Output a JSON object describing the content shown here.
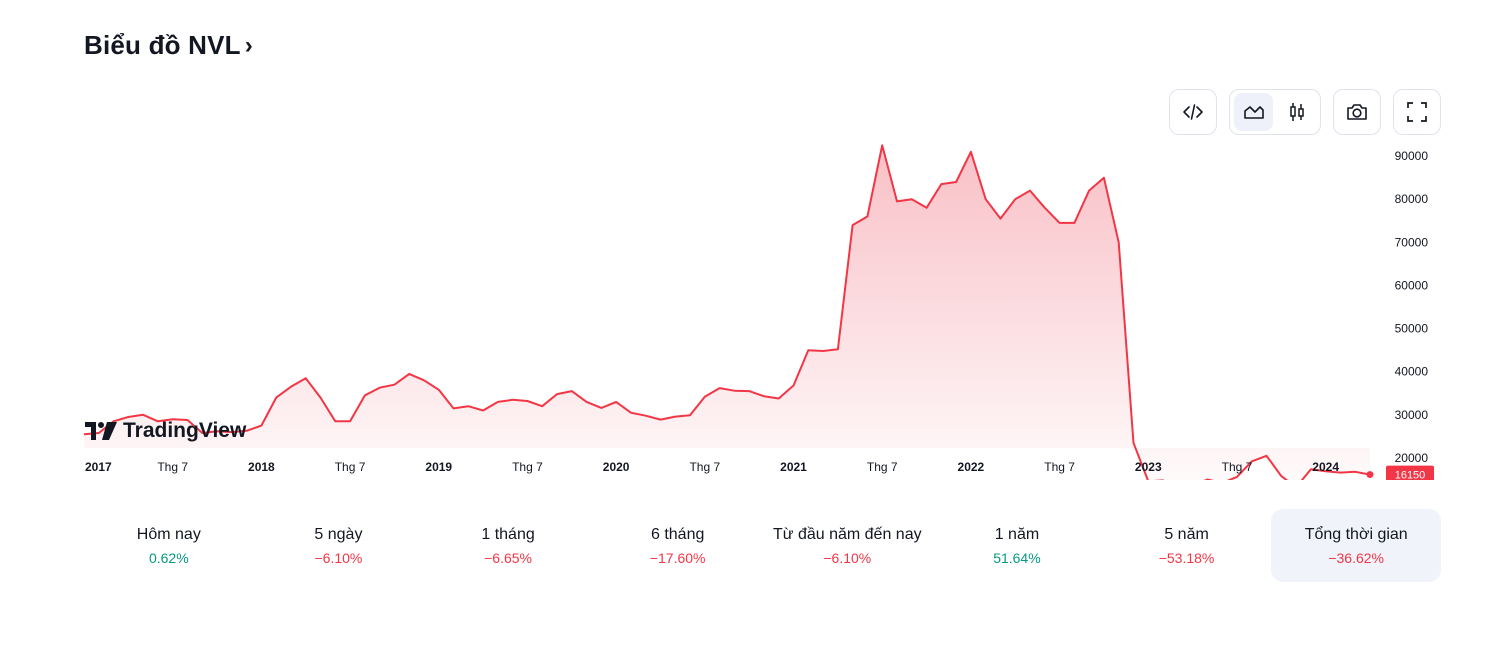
{
  "header": {
    "title": "Biểu đồ NVL",
    "chevron": "›"
  },
  "toolbar": {
    "embed_icon": "code-icon",
    "area_icon": "area-chart-icon",
    "candle_icon": "candlestick-icon",
    "camera_icon": "camera-icon",
    "fullscreen_icon": "fullscreen-icon",
    "active_chart_type": "area"
  },
  "branding": {
    "logo_text": "TradingView"
  },
  "colors": {
    "line": "#f23645",
    "fill_top": "#f7b5bc",
    "positive": "#089981",
    "negative": "#f23645"
  },
  "chart_data": {
    "type": "area",
    "title": "",
    "xlabel": "",
    "ylabel": "",
    "x_axis_labels": [
      "2017",
      "Thg 7",
      "2018",
      "Thg 7",
      "2019",
      "Thg 7",
      "2020",
      "Thg 7",
      "2021",
      "Thg 7",
      "2022",
      "Thg 7",
      "2023",
      "Thg 7",
      "2024"
    ],
    "y_ticks": [
      20000,
      30000,
      40000,
      50000,
      60000,
      70000,
      80000,
      90000
    ],
    "ylim": [
      13500,
      93500
    ],
    "x_start": "2017-01",
    "x_end": "2024-04",
    "grid": false,
    "legend": "none",
    "last_value": 16150,
    "series": [
      {
        "x": [
          "2017-01",
          "2017-02",
          "2017-03",
          "2017-04",
          "2017-05",
          "2017-06",
          "2017-07",
          "2017-08",
          "2017-09",
          "2017-10",
          "2017-11",
          "2017-12",
          "2018-01",
          "2018-02",
          "2018-03",
          "2018-04",
          "2018-05",
          "2018-06",
          "2018-07",
          "2018-08",
          "2018-09",
          "2018-10",
          "2018-11",
          "2018-12",
          "2019-01",
          "2019-02",
          "2019-03",
          "2019-04",
          "2019-05",
          "2019-06",
          "2019-07",
          "2019-08",
          "2019-09",
          "2019-10",
          "2019-11",
          "2019-12",
          "2020-01",
          "2020-02",
          "2020-03",
          "2020-04",
          "2020-05",
          "2020-06",
          "2020-07",
          "2020-08",
          "2020-09",
          "2020-10",
          "2020-11",
          "2020-12",
          "2021-01",
          "2021-02",
          "2021-03",
          "2021-04",
          "2021-05",
          "2021-06",
          "2021-07",
          "2021-08",
          "2021-09",
          "2021-10",
          "2021-11",
          "2021-12",
          "2022-01",
          "2022-02",
          "2022-03",
          "2022-04",
          "2022-05",
          "2022-06",
          "2022-07",
          "2022-08",
          "2022-09",
          "2022-10",
          "2022-11",
          "2022-12",
          "2023-01",
          "2023-02",
          "2023-03",
          "2023-04",
          "2023-05",
          "2023-06",
          "2023-07",
          "2023-08",
          "2023-09",
          "2023-10",
          "2023-11",
          "2023-12",
          "2024-01",
          "2024-02",
          "2024-03",
          "2024-04"
        ],
        "values": [
          25500,
          25800,
          28500,
          29500,
          30000,
          28500,
          29000,
          28800,
          25800,
          26200,
          26000,
          26300,
          27500,
          34000,
          36500,
          38500,
          34000,
          28500,
          28500,
          34500,
          36300,
          37000,
          39500,
          38000,
          35800,
          31500,
          32000,
          31000,
          33000,
          33500,
          33200,
          32000,
          34800,
          35500,
          33000,
          31600,
          33000,
          30500,
          29800,
          28900,
          29600,
          29900,
          34200,
          36200,
          35600,
          35500,
          34300,
          33800,
          36800,
          45000,
          44800,
          45200,
          74000,
          76000,
          92500,
          79500,
          80000,
          78000,
          83500,
          84000,
          91000,
          80000,
          75500,
          80000,
          82000,
          78000,
          74500,
          74500,
          82000,
          85000,
          70000,
          23500,
          14600,
          14800,
          11500,
          13500,
          15000,
          14200,
          15600,
          19200,
          20500,
          15800,
          13200,
          17400,
          16900,
          16600,
          16800,
          16150
        ]
      }
    ]
  },
  "periods": [
    {
      "label": "Hôm nay",
      "value": "0.62%",
      "sign": "pos"
    },
    {
      "label": "5 ngày",
      "value": "−6.10%",
      "sign": "neg"
    },
    {
      "label": "1 tháng",
      "value": "−6.65%",
      "sign": "neg"
    },
    {
      "label": "6 tháng",
      "value": "−17.60%",
      "sign": "neg"
    },
    {
      "label": "Từ đầu năm đến nay",
      "value": "−6.10%",
      "sign": "neg"
    },
    {
      "label": "1 năm",
      "value": "51.64%",
      "sign": "pos"
    },
    {
      "label": "5 năm",
      "value": "−53.18%",
      "sign": "neg"
    },
    {
      "label": "Tổng thời gian",
      "value": "−36.62%",
      "sign": "neg",
      "active": true
    }
  ]
}
